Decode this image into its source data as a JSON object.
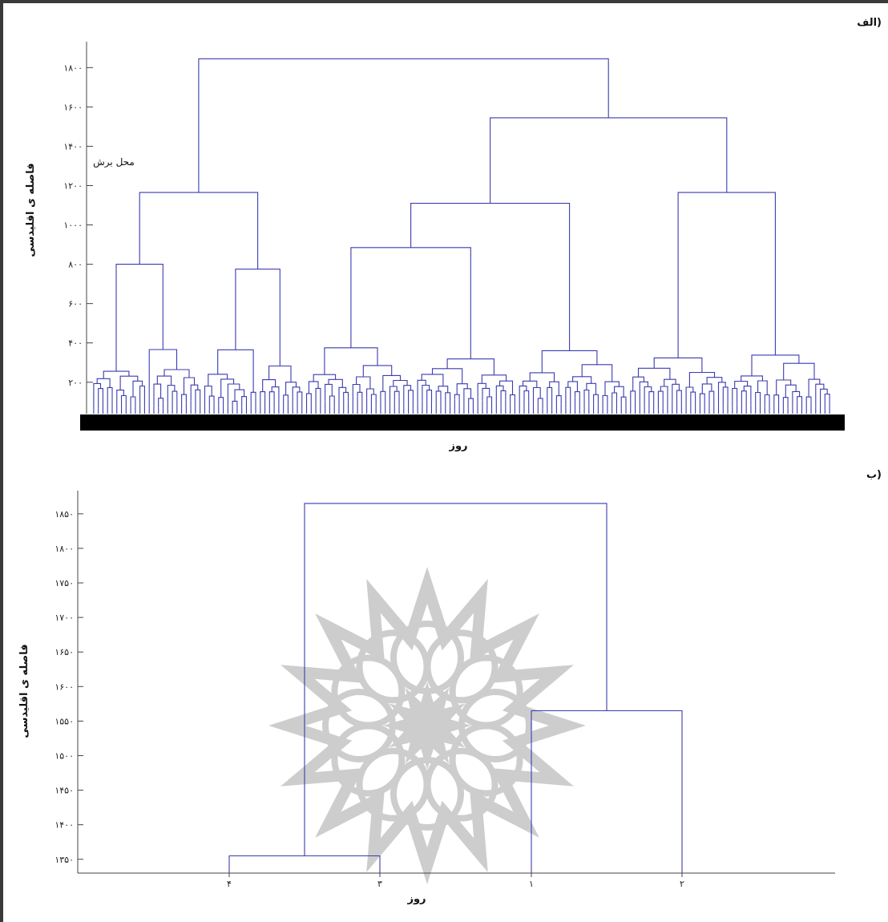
{
  "chart_data": [
    {
      "type": "dendrogram",
      "panel_label": "الف)",
      "ylabel": "فاصله ی اقلیدسی",
      "xlabel": "روز",
      "annotation": "محل برش",
      "ylim": [
        40,
        1940
      ],
      "yticks": [
        {
          "value": 200,
          "label": "۲۰۰"
        },
        {
          "value": 400,
          "label": "۴۰۰"
        },
        {
          "value": 600,
          "label": "۶۰۰"
        },
        {
          "value": 800,
          "label": "۸۰۰"
        },
        {
          "value": 1000,
          "label": "۱۰۰۰"
        },
        {
          "value": 1200,
          "label": "۱۲۰۰"
        },
        {
          "value": 1400,
          "label": "۱۴۰۰"
        },
        {
          "value": 1600,
          "label": "۱۶۰۰"
        },
        {
          "value": 1800,
          "label": "۱۸۰۰"
        }
      ],
      "leaf_count": 160,
      "top_merges": [
        {
          "height": 1845,
          "description": "root"
        },
        {
          "height": 1545
        },
        {
          "height": 1165
        },
        {
          "height": 1110
        },
        {
          "height": 975
        },
        {
          "height": 890
        },
        {
          "height": 800
        },
        {
          "height": 775
        }
      ]
    },
    {
      "type": "dendrogram",
      "panel_label": "ب)",
      "ylabel": "فاصله ی اقلیدسی",
      "xlabel": "روز",
      "ylim": [
        1330,
        1880
      ],
      "yticks": [
        {
          "value": 1350,
          "label": "۱۳۵۰"
        },
        {
          "value": 1400,
          "label": "۱۴۰۰"
        },
        {
          "value": 1450,
          "label": "۱۴۵۰"
        },
        {
          "value": 1500,
          "label": "۱۵۰۰"
        },
        {
          "value": 1550,
          "label": "۱۵۵۰"
        },
        {
          "value": 1600,
          "label": "۱۶۰۰"
        },
        {
          "value": 1650,
          "label": "۱۶۵۰"
        },
        {
          "value": 1700,
          "label": "۱۷۰۰"
        },
        {
          "value": 1750,
          "label": "۱۷۵۰"
        },
        {
          "value": 1800,
          "label": "۱۸۰۰"
        },
        {
          "value": 1850,
          "label": "۱۸۵۰"
        }
      ],
      "leaves": [
        {
          "id": "4",
          "label": "۴"
        },
        {
          "id": "3",
          "label": "۳"
        },
        {
          "id": "1",
          "label": "۱"
        },
        {
          "id": "2",
          "label": "۲"
        }
      ],
      "merges": [
        {
          "children": [
            "4",
            "3"
          ],
          "height": 1355
        },
        {
          "children": [
            "1",
            "2"
          ],
          "height": 1565
        },
        {
          "children": [
            "4-3",
            "1-2"
          ],
          "height": 1865
        }
      ]
    }
  ],
  "colors": {
    "line": "#3b3bb0",
    "axis": "#444444",
    "leafbar": "#000000",
    "watermark": "#c8c8c8"
  }
}
